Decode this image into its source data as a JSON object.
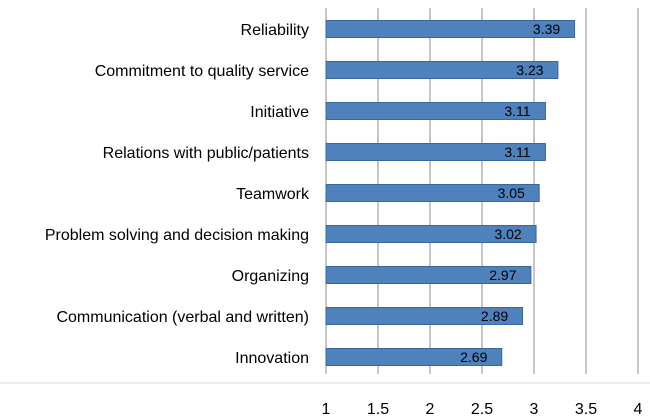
{
  "chart_data": {
    "type": "bar",
    "orientation": "horizontal",
    "categories": [
      "Reliability",
      "Commitment to quality service",
      "Initiative",
      "Relations with public/patients",
      "Teamwork",
      "Problem solving and decision making",
      "Organizing",
      "Communication (verbal and written)",
      "Innovation"
    ],
    "values": [
      3.39,
      3.23,
      3.11,
      3.11,
      3.05,
      3.02,
      2.97,
      2.89,
      2.69
    ],
    "value_labels": [
      "3.39",
      "3.23",
      "3.11",
      "3.11",
      "3.05",
      "3.02",
      "2.97",
      "2.89",
      "2.69"
    ],
    "title": "",
    "xlabel": "",
    "ylabel": "",
    "xlim": [
      1,
      4
    ],
    "x_ticks": [
      "1",
      "1.5",
      "2",
      "2.5",
      "3",
      "3.5",
      "4"
    ],
    "grid": true,
    "legend": "none",
    "colors": {
      "bar": "#4F81BD",
      "bar_edge": "#3A679E",
      "grid": "#8C8C8C",
      "axis": "#D9D9D9"
    }
  }
}
